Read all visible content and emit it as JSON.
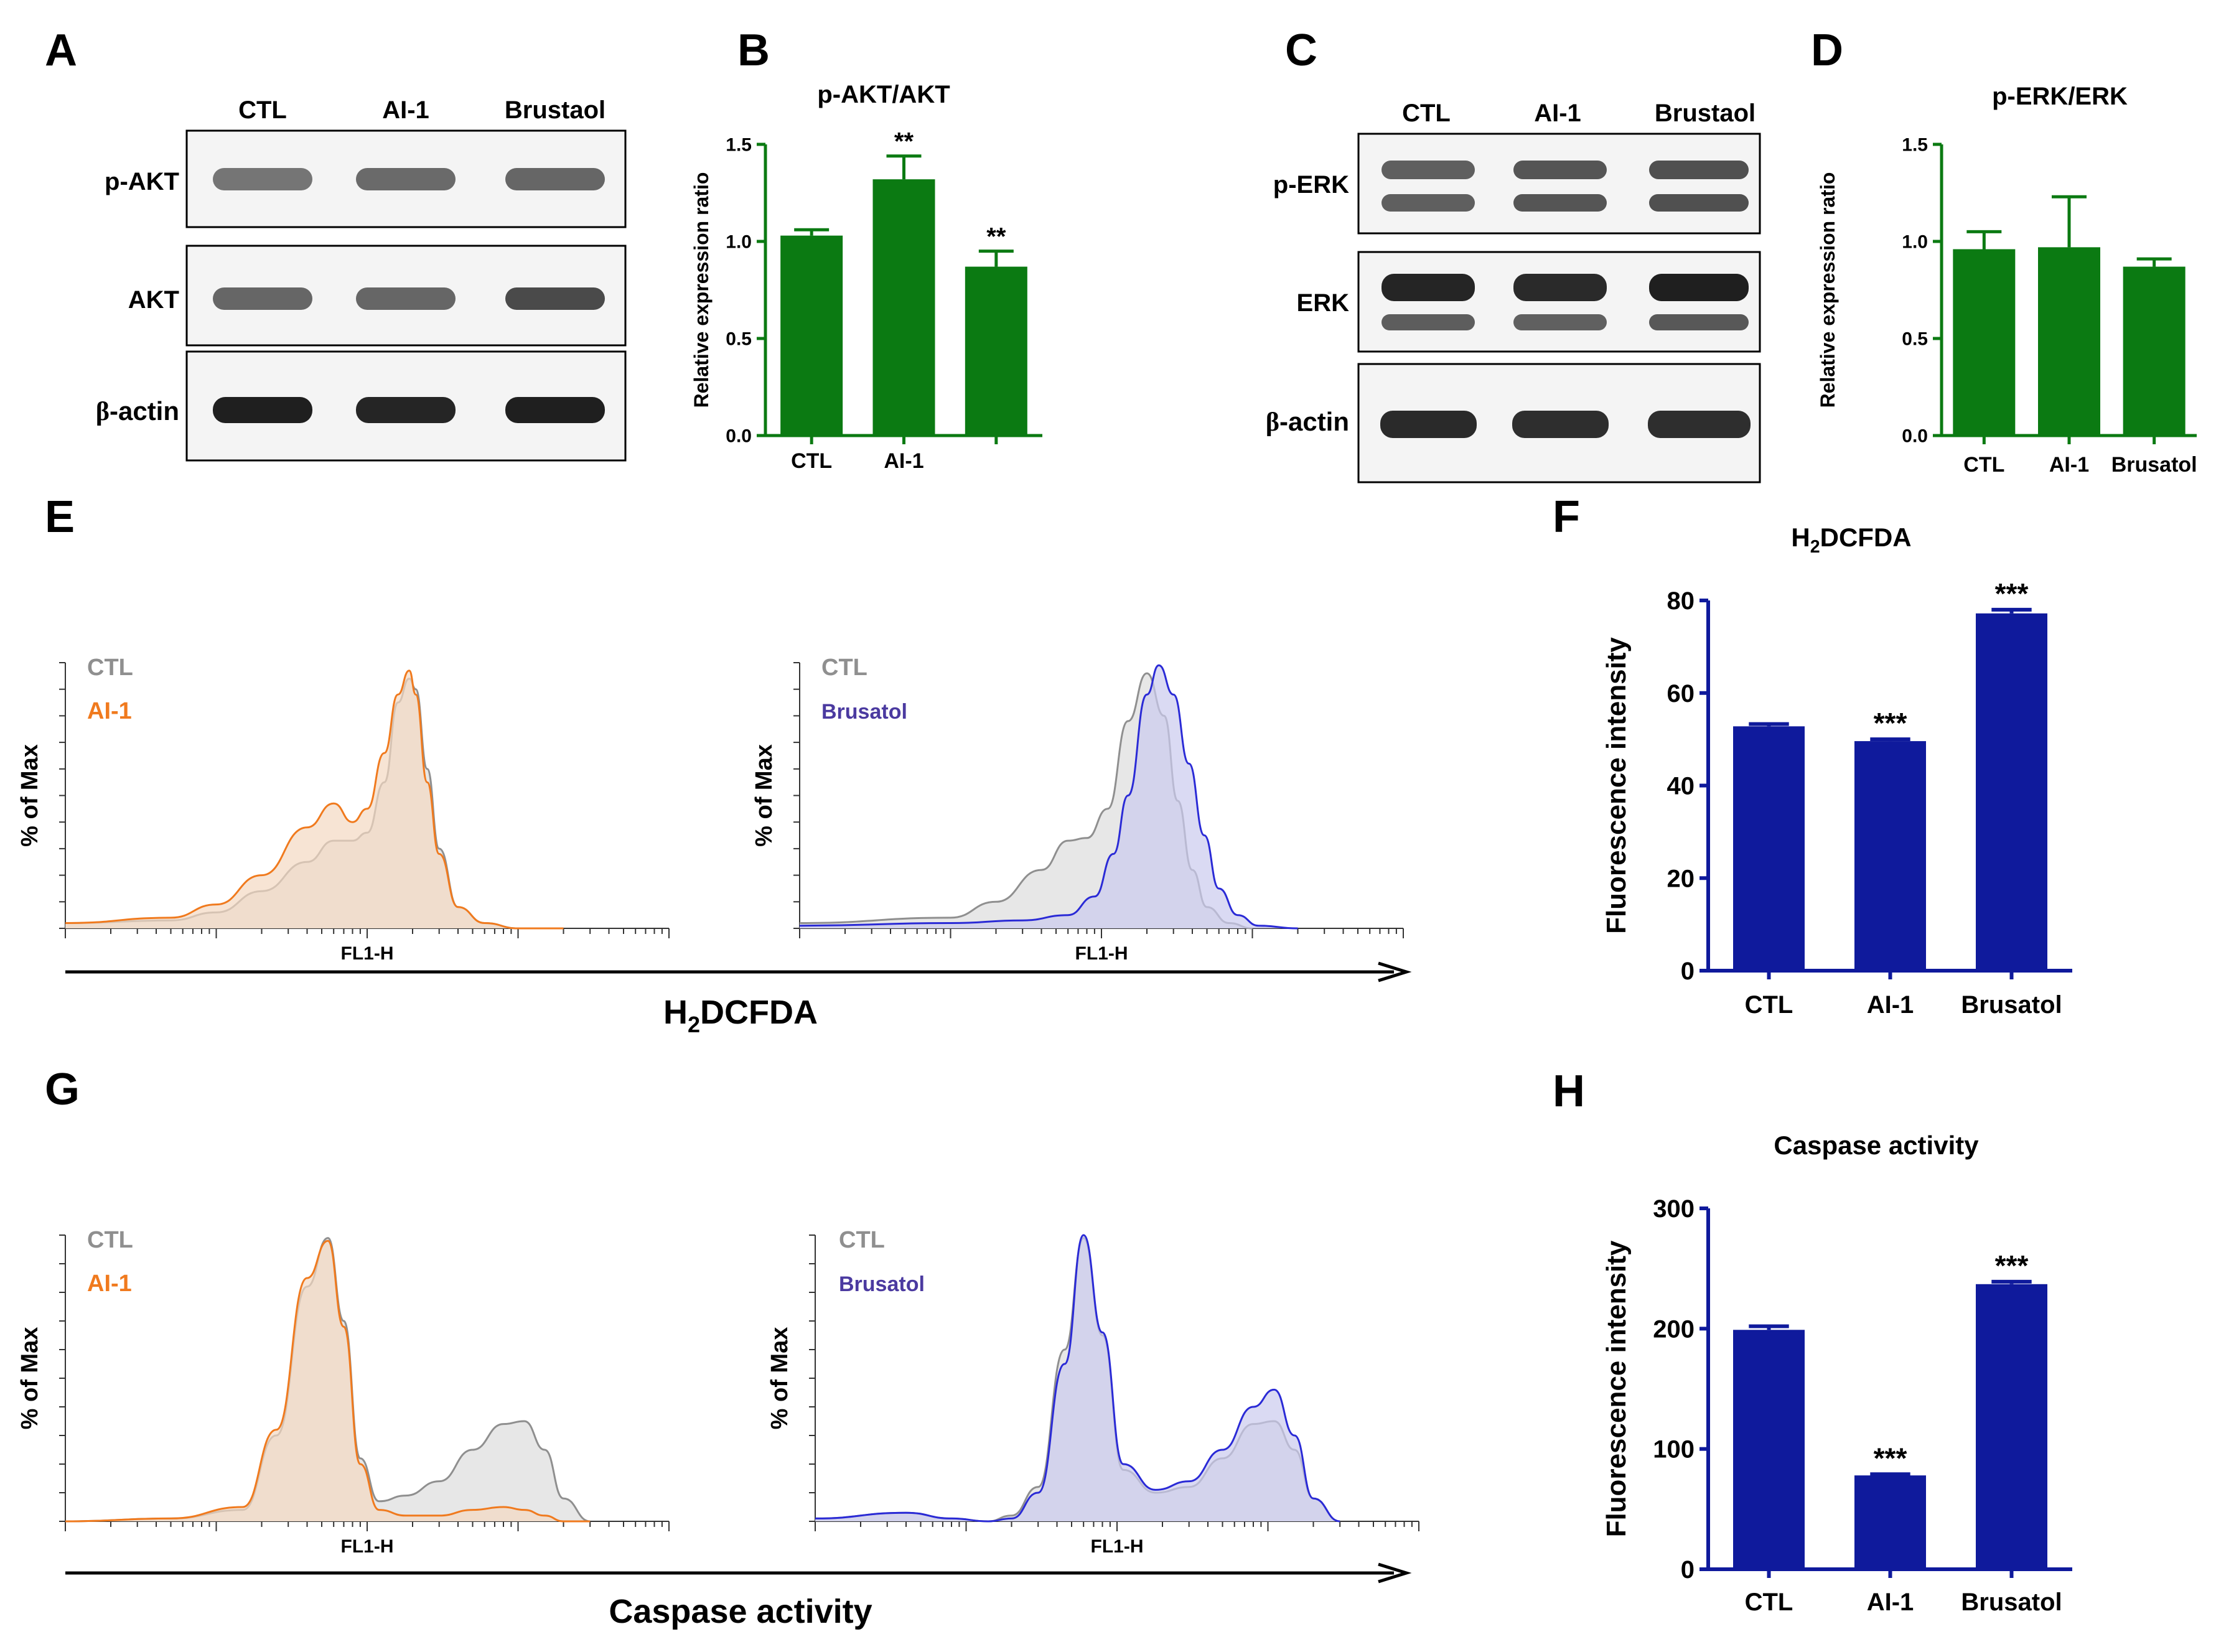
{
  "colors": {
    "green_bar": "#0b7a12",
    "blue_bar": "#0f1a9c",
    "ctl_gray": "#8f8f8f",
    "ctl_fill": "#e3e3e3",
    "ai1_orange": "#f07a1e",
    "ai1_fill": "#f3d8c2",
    "brusatol_blue": "#2a2ad6",
    "brusatol_fill": "#cacaee",
    "brusatol_label": "#4b3aa0"
  },
  "panels": {
    "A": {
      "letter": "A",
      "lanes": [
        "CTL",
        "AI-1",
        "Brustaol"
      ],
      "rows": [
        {
          "label": "p-AKT",
          "intensity": [
            0.55,
            0.6,
            0.62
          ],
          "bands": 1
        },
        {
          "label": "AKT",
          "intensity": [
            0.62,
            0.62,
            0.75
          ],
          "bands": 1
        },
        {
          "label_greek": "β",
          "label_rest": "-actin",
          "intensity": [
            0.95,
            0.92,
            0.95
          ],
          "bands": 1
        }
      ]
    },
    "C": {
      "letter": "C",
      "lanes": [
        "CTL",
        "AI-1",
        "Brustaol"
      ],
      "rows": [
        {
          "label": "p-ERK",
          "intensity": [
            0.65,
            0.7,
            0.72
          ],
          "bands": 2
        },
        {
          "label": "ERK",
          "intensity": [
            0.92,
            0.9,
            0.95
          ],
          "bands": 2
        },
        {
          "label_greek": "β",
          "label_rest": "-actin",
          "intensity": [
            0.9,
            0.88,
            0.88
          ],
          "bands": 1
        }
      ]
    },
    "E": {
      "letter": "E",
      "axis_title_main": "H",
      "axis_title_sub": "2",
      "axis_title_rest": "DCFDA",
      "left": {
        "ylabel": "% of Max",
        "xlabel": "FL1-H",
        "legend_ctl": "CTL",
        "legend_treat": "AI-1"
      },
      "right": {
        "ylabel": "% of Max",
        "xlabel": "FL1-H",
        "legend_ctl": "CTL",
        "legend_treat": "Brusatol"
      }
    },
    "G": {
      "letter": "G",
      "axis_title": "Caspase activity",
      "left": {
        "ylabel": "% of Max",
        "xlabel": "FL1-H",
        "legend_ctl": "CTL",
        "legend_treat": "AI-1"
      },
      "right": {
        "ylabel": "% of Max",
        "xlabel": "FL1-H",
        "legend_ctl": "CTL",
        "legend_treat": "Brusatol"
      }
    }
  },
  "chart_data": [
    {
      "panel": "B",
      "type": "bar",
      "title": "p-AKT/AKT",
      "ylabel": "Relative expression ratio",
      "categories": [
        "CTL",
        "AI-1",
        ""
      ],
      "values": [
        1.03,
        1.32,
        0.87
      ],
      "errors": [
        0.03,
        0.12,
        0.08
      ],
      "significance": [
        "",
        "**",
        "**"
      ],
      "ylim": [
        0,
        1.5
      ],
      "yticks": [
        "0.0",
        "0.5",
        "1.0",
        "1.5"
      ]
    },
    {
      "panel": "D",
      "type": "bar",
      "title": "p-ERK/ERK",
      "ylabel": "Relative expression ratio",
      "categories": [
        "CTL",
        "AI-1",
        "Brusatol"
      ],
      "values": [
        0.96,
        0.97,
        0.87
      ],
      "errors": [
        0.09,
        0.26,
        0.04
      ],
      "significance": [
        "",
        "",
        ""
      ],
      "ylim": [
        0,
        1.5
      ],
      "yticks": [
        "0.0",
        "0.5",
        "1.0",
        "1.5"
      ]
    },
    {
      "panel": "F",
      "type": "bar",
      "title_main": "H",
      "title_sub": "2",
      "title_rest": "DCFDA",
      "ylabel": "Fluorescence intensity",
      "categories": [
        "CTL",
        "AI-1",
        "Brusatol"
      ],
      "values": [
        52.8,
        49.6,
        77.2
      ],
      "errors": [
        0.5,
        0.4,
        0.8
      ],
      "significance": [
        "",
        "***",
        "***"
      ],
      "ylim": [
        0,
        80
      ],
      "yticks": [
        "0",
        "20",
        "40",
        "60",
        "80"
      ]
    },
    {
      "panel": "H",
      "type": "bar",
      "title": "Caspase activity",
      "ylabel": "Fluorescence intensity",
      "categories": [
        "CTL",
        "AI-1",
        "Brusatol"
      ],
      "values": [
        199,
        78,
        237
      ],
      "errors": [
        3,
        1,
        2
      ],
      "significance": [
        "",
        "***",
        "***"
      ],
      "ylim": [
        0,
        300
      ],
      "yticks": [
        "0",
        "100",
        "200",
        "300"
      ]
    },
    {
      "panel": "E-left",
      "type": "area",
      "xscale": "log",
      "xlim": [
        1,
        10000
      ],
      "ylim": [
        0,
        100
      ],
      "series": [
        {
          "name": "CTL",
          "x": [
            1,
            5,
            10,
            20,
            40,
            60,
            80,
            100,
            130,
            160,
            190,
            210,
            250,
            300,
            400,
            600,
            1000,
            2000
          ],
          "y": [
            2,
            3,
            6,
            14,
            25,
            33,
            33,
            36,
            55,
            85,
            94,
            90,
            60,
            30,
            8,
            2,
            0,
            0
          ]
        },
        {
          "name": "AI-1",
          "x": [
            1,
            5,
            10,
            20,
            40,
            60,
            80,
            100,
            130,
            160,
            190,
            210,
            250,
            300,
            400,
            600,
            1000,
            2000
          ],
          "y": [
            2,
            4,
            9,
            20,
            38,
            47,
            40,
            45,
            66,
            88,
            97,
            88,
            55,
            28,
            8,
            2,
            0,
            0
          ]
        }
      ]
    },
    {
      "panel": "E-right",
      "type": "area",
      "xscale": "log",
      "xlim": [
        1,
        10000
      ],
      "ylim": [
        0,
        100
      ],
      "series": [
        {
          "name": "CTL",
          "x": [
            1,
            10,
            20,
            40,
            60,
            80,
            110,
            150,
            200,
            260,
            320,
            400,
            500,
            700,
            1000
          ],
          "y": [
            2,
            4,
            10,
            22,
            33,
            34,
            45,
            78,
            96,
            80,
            48,
            22,
            8,
            2,
            0
          ]
        },
        {
          "name": "Brusatol",
          "x": [
            1,
            10,
            30,
            60,
            90,
            120,
            150,
            200,
            240,
            300,
            380,
            480,
            600,
            800,
            1100,
            2000
          ],
          "y": [
            1,
            2,
            3,
            5,
            12,
            28,
            50,
            88,
            99,
            88,
            62,
            35,
            15,
            5,
            1,
            0
          ]
        }
      ]
    },
    {
      "panel": "G-left",
      "type": "area",
      "xscale": "log",
      "xlim": [
        1,
        10000
      ],
      "ylim": [
        0,
        100
      ],
      "series": [
        {
          "name": "CTL",
          "x": [
            1,
            5,
            15,
            25,
            40,
            55,
            70,
            90,
            120,
            180,
            300,
            500,
            800,
            1100,
            1500,
            2000,
            3000
          ],
          "y": [
            0,
            1,
            4,
            30,
            82,
            99,
            70,
            22,
            7,
            9,
            14,
            25,
            34,
            35,
            25,
            8,
            0
          ]
        },
        {
          "name": "AI-1",
          "x": [
            1,
            5,
            15,
            25,
            40,
            55,
            70,
            90,
            120,
            180,
            300,
            500,
            800,
            1100,
            1500,
            2000,
            3000
          ],
          "y": [
            0,
            1,
            5,
            32,
            85,
            98,
            68,
            20,
            4,
            2,
            2,
            4,
            5,
            4,
            2,
            0,
            0
          ]
        }
      ]
    },
    {
      "panel": "G-right",
      "type": "area",
      "xscale": "log",
      "xlim": [
        1,
        10000
      ],
      "ylim": [
        0,
        100
      ],
      "series": [
        {
          "name": "CTL",
          "x": [
            1,
            4,
            8,
            14,
            20,
            30,
            45,
            60,
            80,
            110,
            180,
            300,
            500,
            800,
            1100,
            1500,
            2000,
            3000
          ],
          "y": [
            1,
            3,
            1,
            0,
            2,
            12,
            60,
            99,
            65,
            18,
            10,
            12,
            22,
            34,
            35,
            25,
            8,
            0
          ]
        },
        {
          "name": "Brusatol",
          "x": [
            1,
            4,
            8,
            14,
            20,
            30,
            45,
            60,
            80,
            110,
            180,
            300,
            500,
            800,
            1100,
            1500,
            2000,
            3000
          ],
          "y": [
            1,
            3,
            1,
            0,
            1,
            10,
            55,
            100,
            66,
            20,
            11,
            14,
            25,
            40,
            46,
            30,
            8,
            0
          ]
        }
      ]
    }
  ]
}
